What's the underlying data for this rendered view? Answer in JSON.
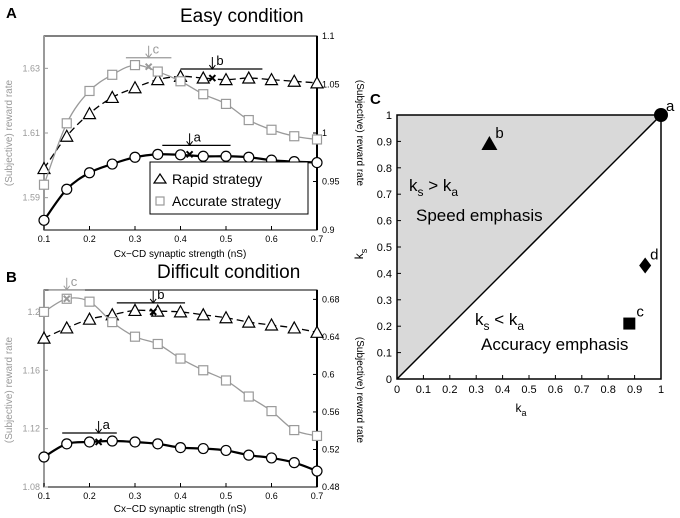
{
  "panels": {
    "A": {
      "letter": "A",
      "title": "Easy condition"
    },
    "B": {
      "letter": "B",
      "title": "Difficult condition"
    },
    "C": {
      "letter": "C"
    }
  },
  "legend": {
    "rapid": "Rapid strategy",
    "accurate": "Accurate strategy"
  },
  "colors": {
    "black": "#000000",
    "gray": "#9a9a9a",
    "shade": "#d9d9d9"
  },
  "chart_data": [
    {
      "id": "A",
      "type": "line",
      "title": "Easy condition",
      "xlabel": "Cx−CD synaptic strength (nS)",
      "ylabel_left": "(Subjective) reward rate",
      "ylabel_right": "(Subjective) reward rate",
      "xlim": [
        0.1,
        0.7
      ],
      "xticks": [
        "0.1",
        "0.2",
        "0.3",
        "0.4",
        "0.5",
        "0.6",
        "0.7"
      ],
      "ylim_left": [
        1.58,
        1.64
      ],
      "yticks_left": [
        "1.59",
        "1.61",
        "1.63"
      ],
      "ylim_right": [
        0.9,
        1.1
      ],
      "yticks_right": [
        "0.9",
        "0.95",
        "1",
        "1.05",
        "1.1"
      ],
      "x": [
        0.1,
        0.15,
        0.2,
        0.25,
        0.3,
        0.35,
        0.4,
        0.45,
        0.5,
        0.55,
        0.6,
        0.65,
        0.7
      ],
      "series": [
        {
          "name": "Rapid strategy",
          "axis": "left",
          "marker": "triangle",
          "color": "#000000",
          "values": [
            1.599,
            1.609,
            1.616,
            1.621,
            1.624,
            1.6265,
            1.6275,
            1.627,
            1.6265,
            1.627,
            1.6265,
            1.626,
            1.6255
          ]
        },
        {
          "name": "Accurate strategy",
          "axis": "left",
          "marker": "square",
          "color": "#9a9a9a",
          "values": [
            1.594,
            1.613,
            1.623,
            1.628,
            1.631,
            1.629,
            1.626,
            1.622,
            1.619,
            1.614,
            1.611,
            1.609,
            1.608
          ]
        },
        {
          "name": "",
          "axis": "right",
          "marker": "circle",
          "color": "#000000",
          "values": [
            0.91,
            0.942,
            0.959,
            0.968,
            0.975,
            0.978,
            0.9775,
            0.976,
            0.976,
            0.975,
            0.972,
            0.9705,
            0.9695
          ]
        }
      ],
      "annotations": [
        {
          "label": "a",
          "x": 0.42,
          "axis": "right",
          "y": 0.978,
          "kind": "x",
          "range": [
            0.36,
            0.51
          ]
        },
        {
          "label": "b",
          "x": 0.47,
          "axis": "left",
          "y": 1.627,
          "kind": "x",
          "range": [
            0.4,
            0.58
          ]
        },
        {
          "label": "c",
          "x": 0.33,
          "axis": "left",
          "y": 1.6305,
          "kind": "cross",
          "range": [
            0.28,
            0.38
          ]
        }
      ]
    },
    {
      "id": "B",
      "type": "line",
      "title": "Difficult condition",
      "xlabel": "Cx−CD synaptic strength (nS)",
      "ylabel_left": "(Subjective) reward rate",
      "ylabel_right": "(Subjective) reward rate",
      "xlim": [
        0.1,
        0.7
      ],
      "xticks": [
        "0.1",
        "0.2",
        "0.3",
        "0.4",
        "0.5",
        "0.6",
        "0.7"
      ],
      "ylim_left": [
        1.08,
        1.215
      ],
      "yticks_left": [
        "1.08",
        "1.12",
        "1.16",
        "1.2"
      ],
      "ylim_right": [
        0.48,
        0.69
      ],
      "yticks_right": [
        "0.48",
        "0.52",
        "0.56",
        "0.6",
        "0.64",
        "0.68"
      ],
      "x": [
        0.1,
        0.15,
        0.2,
        0.25,
        0.3,
        0.35,
        0.4,
        0.45,
        0.5,
        0.55,
        0.6,
        0.65,
        0.7
      ],
      "series": [
        {
          "name": "Rapid strategy",
          "axis": "left",
          "marker": "triangle",
          "color": "#000000",
          "values": [
            1.182,
            1.189,
            1.195,
            1.198,
            1.201,
            1.2005,
            1.2,
            1.198,
            1.196,
            1.193,
            1.191,
            1.189,
            1.186
          ]
        },
        {
          "name": "Accurate strategy",
          "axis": "left",
          "marker": "square",
          "color": "#9a9a9a",
          "values": [
            1.2,
            1.209,
            1.207,
            1.193,
            1.183,
            1.178,
            1.168,
            1.16,
            1.153,
            1.142,
            1.132,
            1.119,
            1.115
          ]
        },
        {
          "name": "",
          "axis": "right",
          "marker": "circle",
          "color": "#000000",
          "values": [
            0.512,
            0.526,
            0.528,
            0.529,
            0.528,
            0.526,
            0.522,
            0.521,
            0.519,
            0.514,
            0.511,
            0.506,
            0.497
          ]
        }
      ],
      "annotations": [
        {
          "label": "a",
          "x": 0.22,
          "axis": "right",
          "y": 0.528,
          "kind": "x",
          "range": [
            0.14,
            0.26
          ]
        },
        {
          "label": "b",
          "x": 0.34,
          "axis": "left",
          "y": 1.2,
          "kind": "x",
          "range": [
            0.26,
            0.41
          ]
        },
        {
          "label": "c",
          "x": 0.15,
          "axis": "left",
          "y": 1.209,
          "kind": "cross",
          "range": [
            0.11,
            0.19
          ]
        }
      ]
    },
    {
      "id": "C",
      "type": "scatter",
      "xlabel": "k_a",
      "ylabel": "k_s",
      "xlim": [
        0,
        1
      ],
      "ylim": [
        0,
        1
      ],
      "xticks": [
        "0",
        "0.1",
        "0.2",
        "0.3",
        "0.4",
        "0.5",
        "0.6",
        "0.7",
        "0.8",
        "0.9",
        "1"
      ],
      "yticks": [
        "0",
        "0.1",
        "0.2",
        "0.3",
        "0.4",
        "0.5",
        "0.6",
        "0.7",
        "0.8",
        "0.9",
        "1"
      ],
      "shaded_region": "above diagonal",
      "points": [
        {
          "label": "a",
          "x": 1.0,
          "y": 1.0,
          "marker": "circle"
        },
        {
          "label": "b",
          "x": 0.35,
          "y": 0.89,
          "marker": "triangle"
        },
        {
          "label": "c",
          "x": 0.88,
          "y": 0.21,
          "marker": "square"
        },
        {
          "label": "d",
          "x": 0.94,
          "y": 0.43,
          "marker": "diamond"
        }
      ],
      "region_labels": [
        {
          "top": "k_s > k_a",
          "bottom": "Speed emphasis"
        },
        {
          "top": "k_s < k_a",
          "bottom": "Accuracy emphasis"
        }
      ]
    }
  ]
}
